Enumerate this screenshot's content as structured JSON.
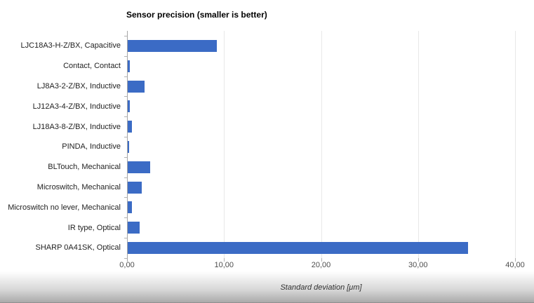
{
  "page": {
    "background_color": "#ffffff"
  },
  "chart_data": {
    "type": "bar",
    "orientation": "horizontal",
    "title": "Sensor precision (smaller is better)",
    "xlabel": "Standard deviation [μm]",
    "ylabel": "",
    "xlim": [
      0,
      40
    ],
    "x_ticks": [
      "0,00",
      "10,00",
      "20,00",
      "30,00",
      "40,00"
    ],
    "x_tick_values": [
      0,
      10,
      20,
      30,
      40
    ],
    "grid": "vertical-only",
    "legend": "none",
    "bar_color": "#3b6bc5",
    "categories": [
      "LJC18A3-H-Z/BX, Capacitive",
      "Contact, Contact",
      "LJ8A3-2-Z/BX, Inductive",
      "LJ12A3-4-Z/BX, Inductive",
      "LJ18A3-8-Z/BX, Inductive",
      "PINDA, Inductive",
      "BLTouch, Mechanical",
      "Microswitch, Mechanical",
      "Microswitch no lever, Mechanical",
      "IR type, Optical",
      "SHARP 0A41SK, Optical"
    ],
    "values": [
      9.2,
      0.2,
      1.7,
      0.25,
      0.4,
      0.15,
      2.3,
      1.45,
      0.45,
      1.2,
      35.1
    ]
  }
}
